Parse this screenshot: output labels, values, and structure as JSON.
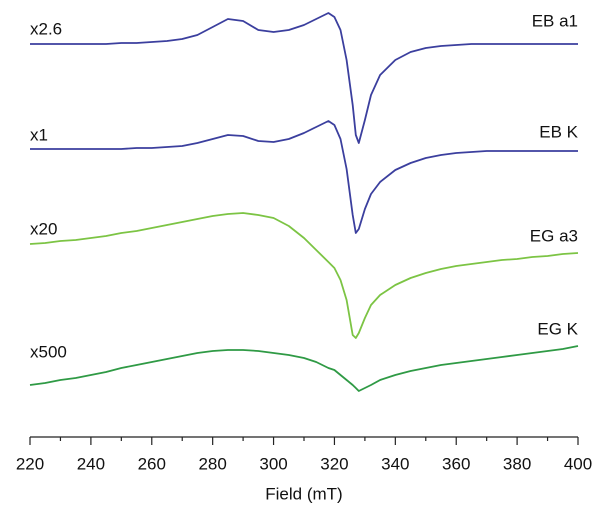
{
  "chart_data": {
    "type": "line",
    "x_label": "Field (mT)",
    "x": [
      220,
      225,
      230,
      235,
      240,
      245,
      250,
      255,
      260,
      265,
      270,
      275,
      280,
      285,
      290,
      295,
      300,
      305,
      310,
      314,
      318,
      320,
      322,
      324,
      326,
      327,
      328,
      330,
      332,
      335,
      340,
      345,
      350,
      355,
      360,
      365,
      370,
      375,
      380,
      385,
      390,
      395,
      400
    ],
    "xlim": [
      220,
      400
    ],
    "xticks": [
      220,
      240,
      260,
      280,
      300,
      320,
      340,
      360,
      380,
      400
    ],
    "xminorticks": [
      230,
      250,
      270,
      290,
      310,
      330,
      350,
      370,
      390
    ],
    "ylim": [
      0,
      437
    ],
    "series": [
      {
        "name": "EB a1",
        "label": "x2.6",
        "color": "#3b3f9e",
        "values": [
          393,
          393,
          393,
          393,
          393,
          393,
          394,
          394,
          395,
          396,
          398,
          402,
          410,
          418,
          416,
          407,
          405,
          407,
          412,
          418,
          424,
          420,
          407,
          377,
          332,
          302,
          294,
          317,
          342,
          362,
          377,
          385,
          389,
          391,
          392,
          393,
          393,
          393,
          393,
          393,
          393,
          393,
          393
        ]
      },
      {
        "name": "EB K",
        "label": "x1",
        "color": "#3b3f9e",
        "values": [
          288,
          288,
          288,
          288,
          288,
          288,
          288,
          289,
          289,
          290,
          291,
          294,
          298,
          302,
          301,
          296,
          295,
          298,
          304,
          310,
          316,
          312,
          298,
          268,
          222,
          204,
          208,
          228,
          243,
          255,
          267,
          274,
          279,
          282,
          284,
          285,
          286,
          286,
          286,
          286,
          286,
          286,
          286
        ]
      },
      {
        "name": "EG a3",
        "label": "x20",
        "color": "#7cc444",
        "values": [
          193,
          194,
          196,
          197,
          199,
          201,
          204,
          206,
          209,
          212,
          215,
          218,
          221,
          223,
          224,
          222,
          219,
          211,
          199,
          187,
          175,
          169,
          157,
          137,
          102,
          99,
          104,
          119,
          132,
          142,
          152,
          159,
          164,
          168,
          171,
          173,
          175,
          177,
          178,
          180,
          181,
          183,
          184
        ]
      },
      {
        "name": "EG K",
        "label": "x500",
        "color": "#2f9a45",
        "values": [
          52,
          54,
          57,
          59,
          62,
          65,
          69,
          72,
          75,
          78,
          81,
          84,
          86,
          87,
          87,
          86,
          84,
          82,
          79,
          75,
          69,
          67,
          62,
          57,
          52,
          49,
          46,
          49,
          52,
          57,
          62,
          66,
          69,
          72,
          74,
          76,
          78,
          80,
          82,
          84,
          86,
          88,
          91
        ]
      }
    ]
  }
}
